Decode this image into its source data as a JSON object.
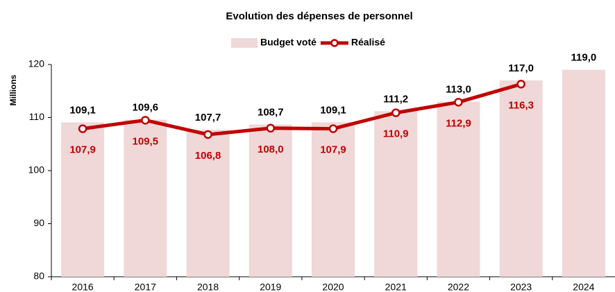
{
  "chart_data": {
    "type": "bar",
    "title": "Evolution des dépenses de personnel",
    "y_label": "Millions",
    "categories": [
      "2016",
      "2017",
      "2018",
      "2019",
      "2020",
      "2021",
      "2022",
      "2023",
      "2024"
    ],
    "series": [
      {
        "name": "Budget voté",
        "type": "bar",
        "color": "#f0d8d8",
        "values": [
          109.1,
          109.6,
          107.7,
          108.7,
          109.1,
          111.2,
          113.0,
          117.0,
          119.0
        ],
        "value_labels": [
          "109,1",
          "109,6",
          "107,7",
          "108,7",
          "109,1",
          "111,2",
          "113,0",
          "117,0",
          "119,0"
        ]
      },
      {
        "name": "Réalisé",
        "type": "line",
        "color": "#c00000",
        "values": [
          107.9,
          109.5,
          106.8,
          108.0,
          107.9,
          110.9,
          112.9,
          116.3,
          null
        ],
        "value_labels": [
          "107,9",
          "109,5",
          "106,8",
          "108,0",
          "107,9",
          "110,9",
          "112,9",
          "116,3",
          null
        ]
      }
    ],
    "ylim": [
      80,
      120
    ],
    "yticks": [
      80,
      90,
      100,
      110,
      120
    ],
    "legend": "top"
  }
}
